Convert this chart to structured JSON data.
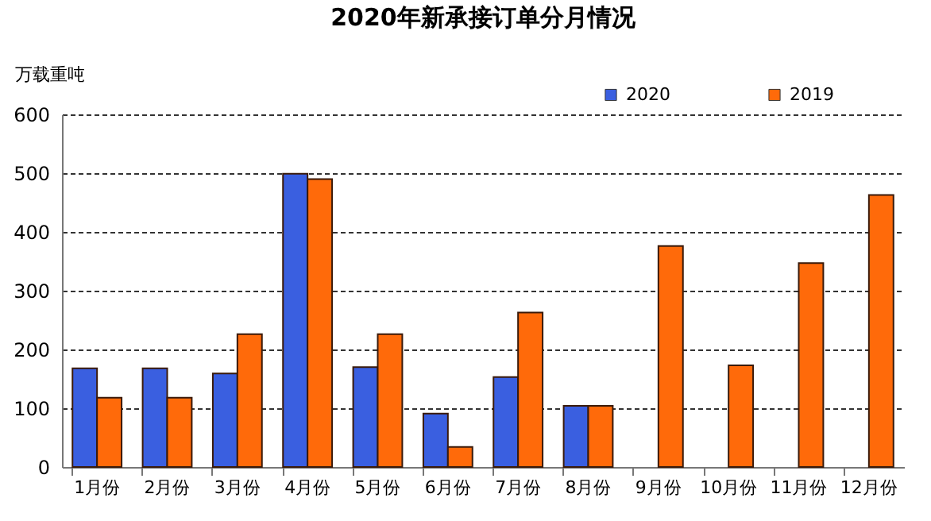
{
  "chart_data": {
    "type": "bar",
    "title": "2020年新承接订单分月情况",
    "ylabel": "万载重吨",
    "categories": [
      "1月份",
      "2月份",
      "3月份",
      "4月份",
      "5月份",
      "6月份",
      "7月份",
      "8月份",
      "9月份",
      "10月份",
      "11月份",
      "12月份"
    ],
    "series": [
      {
        "name": "2020",
        "color": "#3a5fe0",
        "values": [
          168,
          168,
          159,
          499,
          170,
          91,
          153,
          104,
          null,
          null,
          null,
          null
        ]
      },
      {
        "name": "2019",
        "color": "#ff6a0a",
        "values": [
          118,
          118,
          226,
          490,
          226,
          34,
          263,
          104,
          376,
          173,
          347,
          463
        ]
      }
    ],
    "ylim": [
      0,
      600
    ],
    "yticks": [
      0,
      100,
      200,
      300,
      400,
      500,
      600
    ],
    "grid": "y",
    "legend": "top right"
  }
}
